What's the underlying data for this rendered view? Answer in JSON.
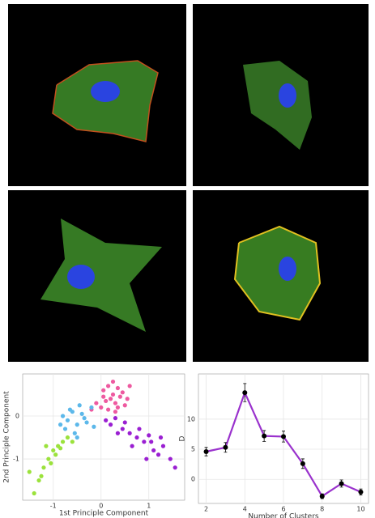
{
  "chart_data": [
    {
      "type": "scatter",
      "xlabel": "1st Principle Component",
      "ylabel": "2nd Principle Component",
      "xlim": [
        -1.64,
        1.75
      ],
      "ylim": [
        -1.96,
        0.98
      ],
      "xticks": [
        -1,
        0,
        1
      ],
      "yticks": [
        0,
        -1
      ],
      "grid": true,
      "series": [
        {
          "color": "#ee5aa0",
          "x": [
            0.05,
            0.15,
            0.25,
            0.35,
            0.45,
            0.1,
            0.2,
            0.3,
            0.4,
            0.55,
            0.0,
            -0.1,
            0.15,
            0.3,
            0.5,
            0.6,
            0.25,
            -0.2,
            0.05,
            0.35
          ],
          "y": [
            0.6,
            0.7,
            0.5,
            0.65,
            0.55,
            0.35,
            0.4,
            0.3,
            0.45,
            0.4,
            0.2,
            0.3,
            0.15,
            0.1,
            0.25,
            0.7,
            0.8,
            0.15,
            0.45,
            0.2
          ]
        },
        {
          "color": "#5cb8ea",
          "x": [
            -0.8,
            -0.7,
            -0.6,
            -0.5,
            -0.4,
            -0.3,
            -0.2,
            -0.75,
            -0.55,
            -0.45,
            -0.35,
            -0.65,
            -0.15,
            -0.5,
            -0.85
          ],
          "y": [
            0.0,
            -0.1,
            0.1,
            -0.2,
            0.05,
            -0.15,
            0.2,
            -0.3,
            -0.4,
            0.25,
            -0.05,
            0.15,
            -0.25,
            -0.5,
            -0.2
          ]
        },
        {
          "color": "#9be23c",
          "x": [
            -1.4,
            -1.3,
            -1.2,
            -1.1,
            -1.0,
            -0.9,
            -0.8,
            -0.7,
            -1.25,
            -1.05,
            -0.95,
            -0.6,
            -1.5,
            -0.85,
            -1.15
          ],
          "y": [
            -1.8,
            -1.5,
            -1.2,
            -1.0,
            -0.8,
            -0.7,
            -0.6,
            -0.5,
            -1.4,
            -1.1,
            -0.9,
            -0.6,
            -1.3,
            -0.75,
            -0.7
          ]
        },
        {
          "color": "#9a1fd2",
          "x": [
            0.1,
            0.2,
            0.3,
            0.45,
            0.6,
            0.75,
            0.9,
            1.0,
            1.1,
            1.2,
            1.3,
            1.45,
            1.55,
            0.5,
            0.8,
            1.05,
            0.35,
            0.65,
            0.95,
            1.25
          ],
          "y": [
            -0.1,
            -0.2,
            -0.05,
            -0.3,
            -0.4,
            -0.5,
            -0.6,
            -0.45,
            -0.8,
            -0.9,
            -0.7,
            -1.0,
            -1.2,
            -0.15,
            -0.3,
            -0.6,
            -0.4,
            -0.7,
            -1.0,
            -0.5
          ]
        }
      ]
    },
    {
      "type": "line",
      "xlabel": "Number of Clusters",
      "ylabel": "D",
      "xlim": [
        1.6,
        10.4
      ],
      "ylim": [
        -4,
        17.5
      ],
      "xticks": [
        2,
        4,
        6,
        8,
        10
      ],
      "yticks": [
        0,
        5,
        10
      ],
      "grid": true,
      "series": [
        {
          "color": "#9a32cd",
          "x": [
            2,
            3,
            4,
            5,
            6,
            7,
            8,
            9,
            10
          ],
          "values": [
            4.6,
            5.3,
            14.4,
            7.2,
            7.1,
            2.6,
            -2.8,
            -0.7,
            -2.1
          ],
          "errors": [
            0.7,
            0.8,
            1.5,
            0.9,
            0.9,
            0.8,
            0.4,
            0.6,
            0.5
          ]
        }
      ]
    }
  ]
}
